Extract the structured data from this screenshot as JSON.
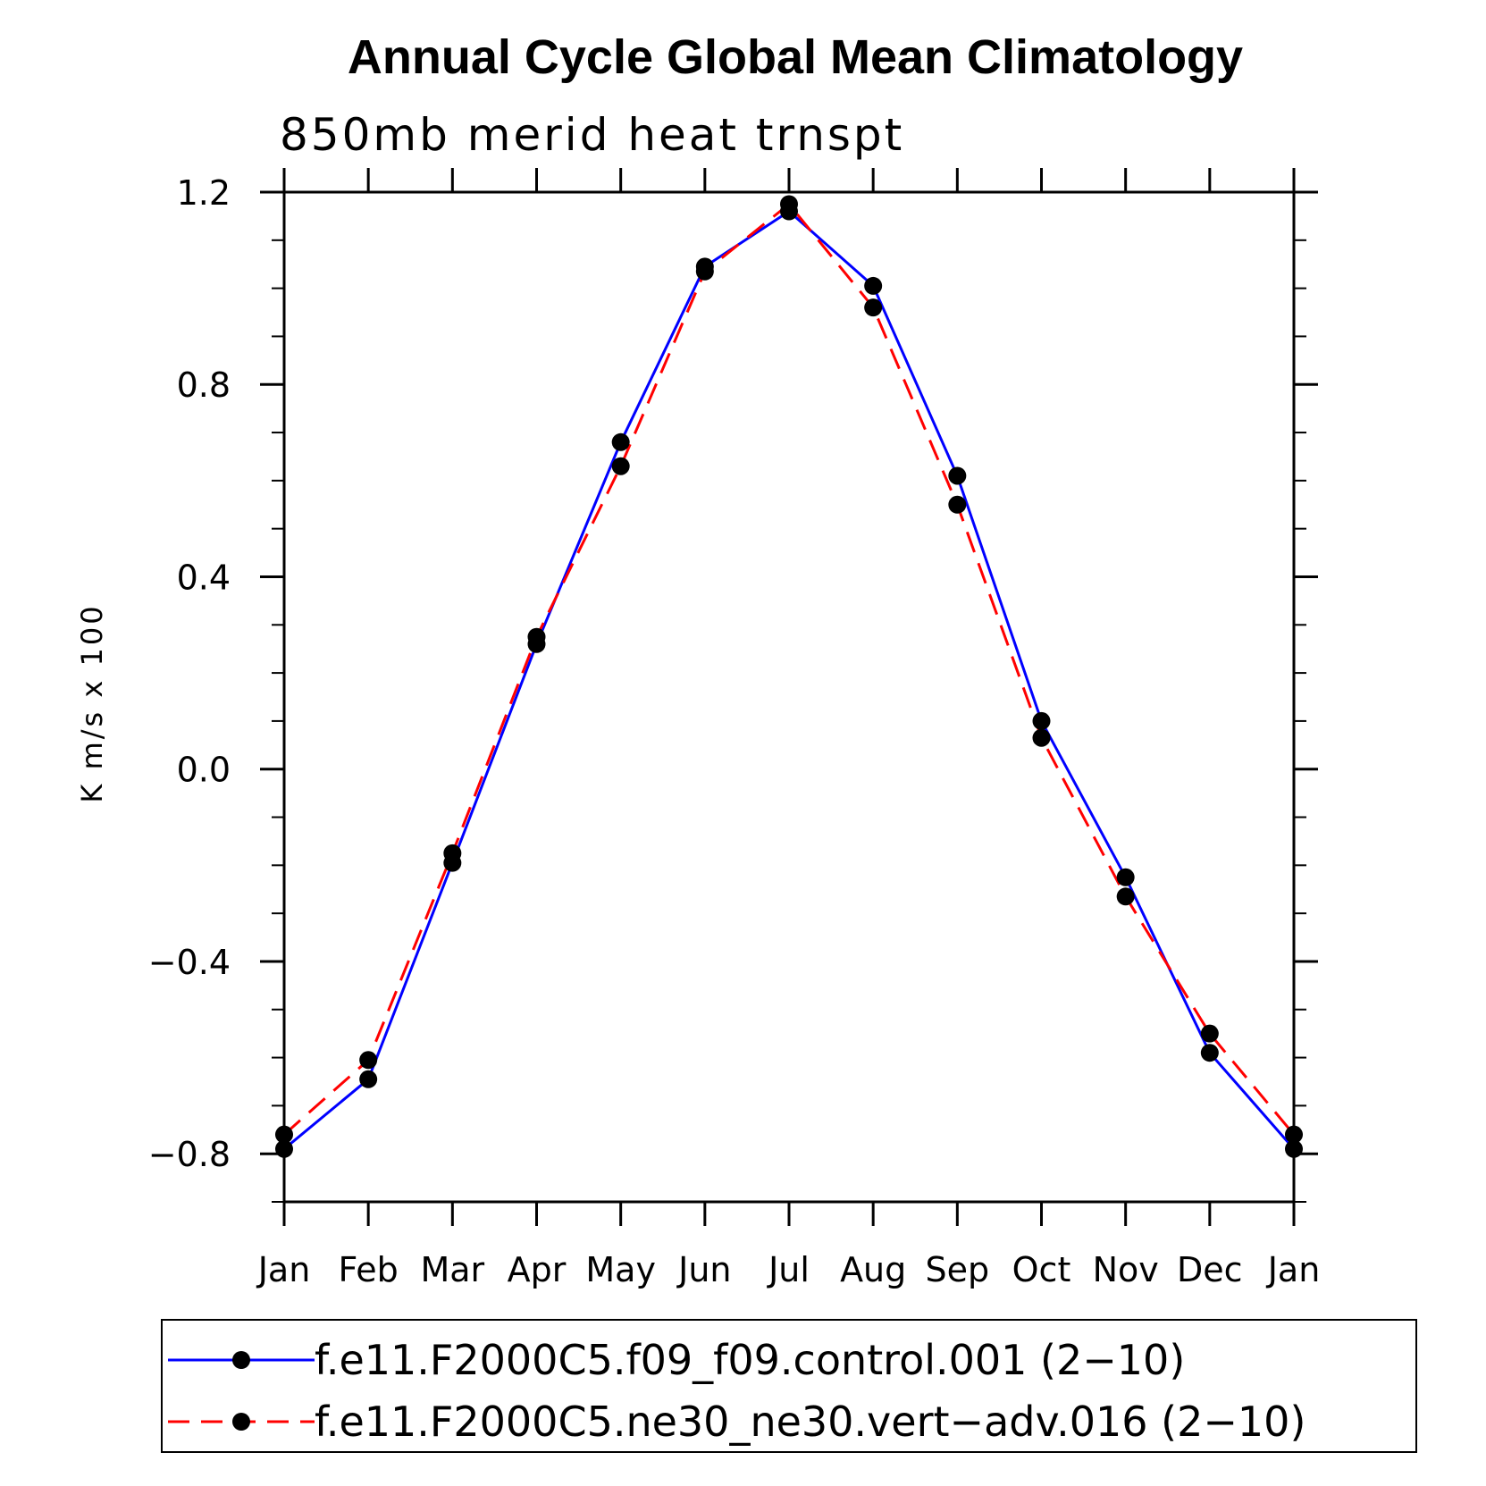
{
  "chart_data": {
    "type": "line",
    "title": "Annual Cycle Global Mean Climatology",
    "subtitle": "850mb merid heat trnspt",
    "ylabel": "K m/s x 100",
    "xlabel": "",
    "categories": [
      "Jan",
      "Feb",
      "Mar",
      "Apr",
      "May",
      "Jun",
      "Jul",
      "Aug",
      "Sep",
      "Oct",
      "Nov",
      "Dec",
      "Jan"
    ],
    "ylim": [
      -0.9,
      1.2
    ],
    "yticks": [
      -0.8,
      -0.4,
      0.0,
      0.4,
      0.8,
      1.2
    ],
    "ytick_labels": [
      "−0.8",
      "−0.4",
      "0.0",
      "0.4",
      "0.8",
      "1.2"
    ],
    "grid": false,
    "legend_placement": "bottom",
    "series": [
      {
        "name": "f.e11.F2000C5.f09_f09.control.001 (2−10)",
        "color": "#0000ff",
        "dash": "solid",
        "values": [
          -0.79,
          -0.645,
          -0.195,
          0.26,
          0.68,
          1.045,
          1.16,
          1.005,
          0.61,
          0.1,
          -0.225,
          -0.59,
          -0.79
        ]
      },
      {
        "name": "f.e11.F2000C5.ne30_ne30.vert−adv.016 (2−10)",
        "color": "#ff0000",
        "dash": "dashed",
        "values": [
          -0.76,
          -0.605,
          -0.175,
          0.275,
          0.63,
          1.035,
          1.175,
          0.96,
          0.55,
          0.065,
          -0.265,
          -0.55,
          -0.76
        ]
      }
    ]
  }
}
